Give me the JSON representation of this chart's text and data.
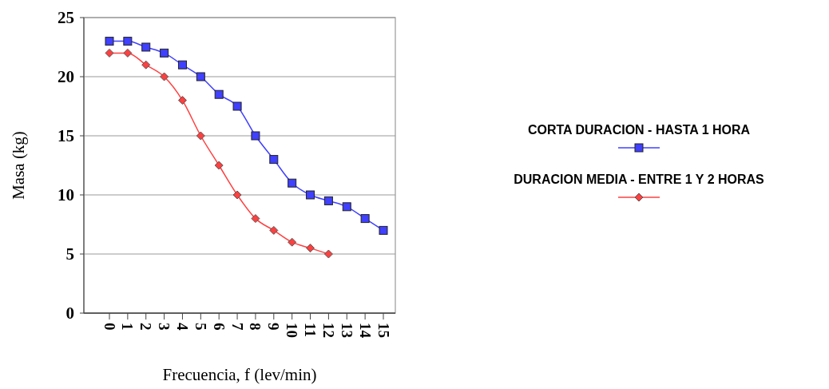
{
  "chart_data": {
    "type": "line",
    "xlabel": "Frecuencia, f (lev/min)",
    "ylabel": "Masa (kg)",
    "categories": [
      "0",
      "1",
      "2",
      "3",
      "4",
      "5",
      "6",
      "7",
      "8",
      "9",
      "10",
      "11",
      "12",
      "13",
      "14",
      "15"
    ],
    "series": [
      {
        "name": "CORTA DURACION - HASTA 1 HORA",
        "color": "#4040ff",
        "marker": "square",
        "values": [
          23,
          23,
          22.5,
          22,
          21,
          20,
          18.5,
          17.5,
          15,
          13,
          11,
          10,
          9.5,
          9,
          8,
          7
        ]
      },
      {
        "name": "DURACION MEDIA - ENTRE 1 Y 2 HORAS",
        "color": "#ff4040",
        "marker": "diamond",
        "values": [
          22,
          22,
          21,
          20,
          18,
          15,
          12.5,
          10,
          8,
          7,
          6,
          5.5,
          5,
          null,
          null,
          null
        ]
      }
    ],
    "ylim": [
      0,
      25
    ],
    "yticks": [
      0,
      5,
      10,
      15,
      20,
      25
    ],
    "grid": "y",
    "legend": "right",
    "line_style": "solid"
  }
}
